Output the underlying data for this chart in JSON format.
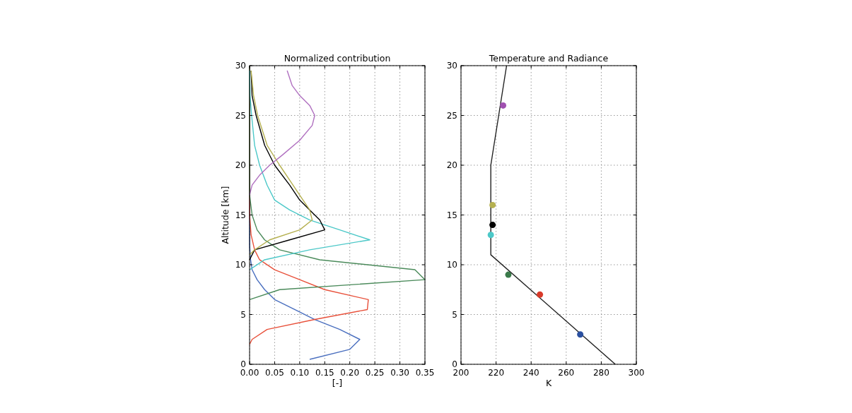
{
  "chart_data": [
    {
      "type": "line",
      "title": "Normalized contribution",
      "xlabel": "[-]",
      "ylabel": "Altitude [km]",
      "xlim": [
        0,
        0.35
      ],
      "ylim": [
        0,
        30
      ],
      "xticks": [
        {
          "value": 0,
          "label": "0.00"
        },
        {
          "value": 0.05,
          "label": "0.05"
        },
        {
          "value": 0.1,
          "label": "0.10"
        },
        {
          "value": 0.15,
          "label": "0.15"
        },
        {
          "value": 0.2,
          "label": "0.20"
        },
        {
          "value": 0.25,
          "label": "0.25"
        },
        {
          "value": 0.3,
          "label": "0.30"
        },
        {
          "value": 0.35,
          "label": "0.35"
        }
      ],
      "yticks": [
        0,
        5,
        10,
        15,
        20,
        25,
        30
      ],
      "grid": true,
      "line_style": "solid",
      "series": [
        {
          "color": "#4a6fbf",
          "x": [
            0.12,
            0.2,
            0.22,
            0.18,
            0.13,
            0.09,
            0.05,
            0.03,
            0.015,
            0.005,
            0.002,
            0,
            0
          ],
          "values": [
            0.5,
            1.5,
            2.5,
            3.5,
            4.5,
            5.5,
            6.5,
            7.5,
            8.5,
            9.5,
            10.5,
            12,
            30
          ]
        },
        {
          "color": "#e8503a",
          "x": [
            0,
            0.005,
            0.035,
            0.13,
            0.235,
            0.237,
            0.15,
            0.1,
            0.05,
            0.02,
            0.01,
            0.003,
            0,
            0
          ],
          "values": [
            2,
            2.5,
            3.5,
            4.5,
            5.5,
            6.5,
            7.5,
            8.5,
            9.5,
            10.5,
            11.5,
            13,
            15,
            30
          ]
        },
        {
          "color": "#4a8a5a",
          "x": [
            0,
            0.06,
            0.35,
            0.33,
            0.14,
            0.06,
            0.03,
            0.015,
            0.005,
            0,
            0
          ],
          "values": [
            6.5,
            7.5,
            8.5,
            9.5,
            10.5,
            11.5,
            12.5,
            13.5,
            15,
            17,
            30
          ]
        },
        {
          "color": "#4cc8c8",
          "x": [
            0,
            0.03,
            0.12,
            0.24,
            0.18,
            0.12,
            0.08,
            0.05,
            0.035,
            0.02,
            0.01,
            0.004,
            0.001,
            0
          ],
          "values": [
            9.5,
            10.5,
            11.5,
            12.5,
            13.5,
            14.5,
            15.5,
            16.5,
            18,
            20,
            22,
            25,
            27,
            29.5
          ]
        },
        {
          "color": "#000000",
          "x": [
            0,
            0.01,
            0.08,
            0.15,
            0.14,
            0.12,
            0.1,
            0.08,
            0.05,
            0.03,
            0.013,
            0.005,
            0.003
          ],
          "values": [
            10.5,
            11.5,
            12.5,
            13.5,
            14.5,
            15.5,
            16.5,
            18,
            20,
            22,
            25,
            27,
            29.5
          ]
        },
        {
          "color": "#b5b050",
          "x": [
            0,
            0.01,
            0.04,
            0.1,
            0.125,
            0.12,
            0.1,
            0.06,
            0.035,
            0.016,
            0.008,
            0.003
          ],
          "values": [
            11,
            11.5,
            12.5,
            13.5,
            14.5,
            15.5,
            17,
            20,
            22,
            25,
            27,
            29.5
          ]
        },
        {
          "color": "#b070c0",
          "x": [
            0,
            0.005,
            0.02,
            0.04,
            0.065,
            0.1,
            0.125,
            0.13,
            0.12,
            0.1,
            0.085,
            0.075
          ],
          "values": [
            17,
            18,
            19,
            20,
            21,
            22.5,
            24,
            25,
            26,
            27,
            28,
            29.5
          ]
        }
      ]
    },
    {
      "type": "line",
      "title": "Temperature and Radiance",
      "xlabel": "K",
      "xlim": [
        200,
        300
      ],
      "ylim": [
        0,
        30
      ],
      "xticks": [
        200,
        220,
        240,
        260,
        280,
        300
      ],
      "yticks": [
        0,
        5,
        10,
        15,
        20,
        25,
        30
      ],
      "grid": true,
      "line_style": "solid",
      "series": [
        {
          "color": "#222222",
          "x": [
            288,
            217,
            217,
            226
          ],
          "values": [
            0,
            11,
            20,
            30
          ]
        },
        {
          "type": "scatter",
          "marker": "circle",
          "color": "#a050b0",
          "x": [
            224
          ],
          "values": [
            26
          ]
        },
        {
          "type": "scatter",
          "marker": "circle",
          "color": "#b5b050",
          "x": [
            218
          ],
          "values": [
            16
          ]
        },
        {
          "type": "scatter",
          "marker": "circle",
          "color": "#000000",
          "x": [
            218
          ],
          "values": [
            14
          ]
        },
        {
          "type": "scatter",
          "marker": "circle",
          "color": "#4cc8c8",
          "x": [
            217
          ],
          "values": [
            13
          ]
        },
        {
          "type": "scatter",
          "marker": "circle",
          "color": "#3a7a4a",
          "x": [
            227
          ],
          "values": [
            9
          ]
        },
        {
          "type": "scatter",
          "marker": "circle",
          "color": "#d83a2a",
          "x": [
            245
          ],
          "values": [
            7
          ]
        },
        {
          "type": "scatter",
          "marker": "circle",
          "color": "#2a50a0",
          "x": [
            268
          ],
          "values": [
            3
          ]
        }
      ]
    }
  ]
}
